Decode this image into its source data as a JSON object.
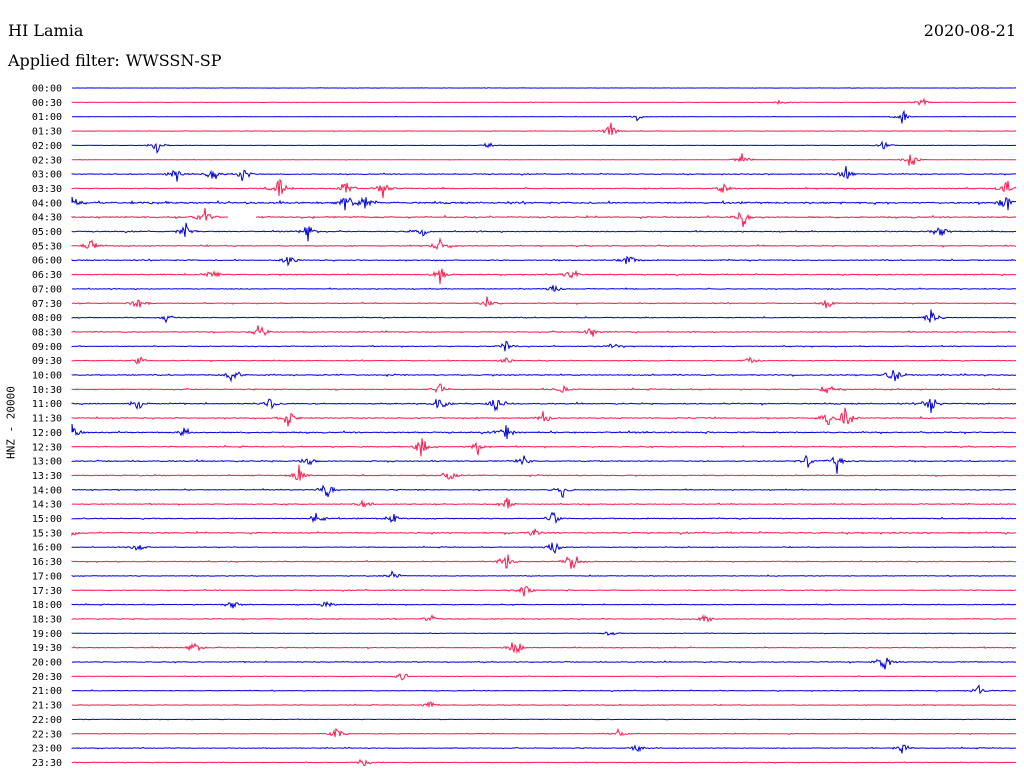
{
  "header": {
    "station": "HI Lamia",
    "date": "2020-08-21",
    "filter_label": "Applied filter:",
    "filter_value": "WWSSN-SP"
  },
  "channel_label": "HNZ - 20000",
  "colors": {
    "trace_a": "#0000dd",
    "trace_b": "#ff1a4d",
    "background": "#ffffff"
  },
  "chart_data": {
    "type": "line",
    "title": "HI Lamia",
    "ylabel": "HNZ - 20000",
    "grid": false,
    "legend": "none",
    "row_interval_minutes": 30,
    "categories": [
      "00:00",
      "00:30",
      "01:00",
      "01:30",
      "02:00",
      "02:30",
      "03:00",
      "03:30",
      "04:00",
      "04:30",
      "05:00",
      "05:30",
      "06:00",
      "06:30",
      "07:00",
      "07:30",
      "08:00",
      "08:30",
      "09:00",
      "09:30",
      "10:00",
      "10:30",
      "11:00",
      "11:30",
      "12:00",
      "12:30",
      "13:00",
      "13:30",
      "14:00",
      "14:30",
      "15:00",
      "15:30",
      "16:00",
      "16:30",
      "17:00",
      "17:30",
      "18:00",
      "18:30",
      "19:00",
      "19:30",
      "20:00",
      "20:30",
      "21:00",
      "21:30",
      "22:00",
      "22:30",
      "23:00",
      "23:30"
    ],
    "series": [
      {
        "values": [
          0.1,
          0.12,
          0.1,
          0.15,
          0.12,
          0.15,
          0.3,
          0.35,
          0.6,
          0.5,
          0.35,
          0.35,
          0.35,
          0.35,
          0.3,
          0.3,
          0.3,
          0.35,
          0.3,
          0.3,
          0.4,
          0.35,
          0.4,
          0.4,
          0.45,
          0.35,
          0.4,
          0.35,
          0.3,
          0.3,
          0.35,
          0.45,
          0.25,
          0.3,
          0.25,
          0.3,
          0.25,
          0.3,
          0.2,
          0.3,
          0.3,
          0.2,
          0.25,
          0.25,
          0.2,
          0.25,
          0.25,
          0.2
        ],
        "events": [
          [],
          [
            [
              0.75,
              0.4
            ],
            [
              0.9,
              0.5
            ]
          ],
          [
            [
              0.6,
              0.4
            ],
            [
              0.88,
              0.6
            ]
          ],
          [
            [
              0.57,
              1.0
            ]
          ],
          [
            [
              0.09,
              0.9
            ],
            [
              0.44,
              0.4
            ],
            [
              0.86,
              0.4
            ]
          ],
          [
            [
              0.89,
              1.0
            ],
            [
              0.71,
              0.6
            ]
          ],
          [
            [
              0.11,
              1.0
            ],
            [
              0.15,
              0.8
            ],
            [
              0.18,
              1.1
            ],
            [
              0.82,
              0.9
            ]
          ],
          [
            [
              0.22,
              1.4
            ],
            [
              0.29,
              0.9
            ],
            [
              0.33,
              0.8
            ],
            [
              0.69,
              0.5
            ],
            [
              0.99,
              1.3
            ]
          ],
          [
            [
              0.0,
              1.1
            ],
            [
              0.29,
              1.2
            ],
            [
              0.31,
              0.8
            ],
            [
              0.99,
              1.2
            ]
          ],
          [
            [
              0.14,
              1.1
            ],
            [
              0.71,
              1.1
            ]
          ],
          [
            [
              0.12,
              0.9
            ],
            [
              0.25,
              0.8
            ],
            [
              0.37,
              0.6
            ],
            [
              0.92,
              0.7
            ]
          ],
          [
            [
              0.02,
              0.8
            ],
            [
              0.39,
              0.8
            ]
          ],
          [
            [
              0.23,
              1.0
            ],
            [
              0.59,
              0.9
            ]
          ],
          [
            [
              0.15,
              0.7
            ],
            [
              0.39,
              0.9
            ],
            [
              0.53,
              0.7
            ]
          ],
          [
            [
              0.51,
              0.5
            ]
          ],
          [
            [
              0.07,
              0.8
            ],
            [
              0.44,
              0.8
            ],
            [
              0.8,
              0.6
            ]
          ],
          [
            [
              0.1,
              0.6
            ],
            [
              0.91,
              1.2
            ]
          ],
          [
            [
              0.2,
              1.0
            ],
            [
              0.55,
              0.6
            ]
          ],
          [
            [
              0.46,
              0.5
            ],
            [
              0.57,
              0.5
            ]
          ],
          [
            [
              0.07,
              0.5
            ],
            [
              0.46,
              0.6
            ],
            [
              0.72,
              0.5
            ]
          ],
          [
            [
              0.17,
              0.9
            ],
            [
              0.87,
              0.9
            ]
          ],
          [
            [
              0.39,
              1.1
            ],
            [
              0.52,
              0.5
            ],
            [
              0.8,
              0.6
            ]
          ],
          [
            [
              0.07,
              0.8
            ],
            [
              0.21,
              0.6
            ],
            [
              0.39,
              1.0
            ],
            [
              0.45,
              0.9
            ],
            [
              0.91,
              1.0
            ]
          ],
          [
            [
              0.23,
              1.0
            ],
            [
              0.5,
              0.7
            ],
            [
              0.8,
              0.8
            ],
            [
              0.82,
              1.3
            ]
          ],
          [
            [
              0.0,
              0.9
            ],
            [
              0.12,
              0.8
            ],
            [
              0.46,
              1.1
            ]
          ],
          [
            [
              0.37,
              1.2
            ],
            [
              0.43,
              0.9
            ]
          ],
          [
            [
              0.25,
              0.6
            ],
            [
              0.48,
              0.7
            ],
            [
              0.78,
              0.7
            ],
            [
              0.81,
              1.0
            ]
          ],
          [
            [
              0.24,
              1.0
            ],
            [
              0.4,
              1.0
            ]
          ],
          [
            [
              0.27,
              0.8
            ],
            [
              0.52,
              0.9
            ]
          ],
          [
            [
              0.31,
              0.7
            ],
            [
              0.46,
              0.8
            ]
          ],
          [
            [
              0.26,
              0.8
            ],
            [
              0.34,
              0.6
            ],
            [
              0.51,
              0.7
            ]
          ],
          [
            [
              0.0,
              0.4
            ],
            [
              0.49,
              0.5
            ]
          ],
          [
            [
              0.07,
              0.5
            ],
            [
              0.51,
              0.8
            ]
          ],
          [
            [
              0.46,
              1.0
            ],
            [
              0.53,
              1.3
            ]
          ],
          [
            [
              0.34,
              0.5
            ]
          ],
          [
            [
              0.48,
              0.8
            ]
          ],
          [
            [
              0.17,
              0.5
            ],
            [
              0.27,
              0.6
            ]
          ],
          [
            [
              0.38,
              0.5
            ],
            [
              0.67,
              0.8
            ]
          ],
          [
            [
              0.57,
              0.4
            ]
          ],
          [
            [
              0.13,
              0.6
            ],
            [
              0.47,
              1.4
            ]
          ],
          [
            [
              0.86,
              1.3
            ]
          ],
          [
            [
              0.35,
              0.5
            ]
          ],
          [
            [
              0.96,
              0.6
            ]
          ],
          [
            [
              0.38,
              0.5
            ]
          ],
          [],
          [
            [
              0.28,
              0.6
            ],
            [
              0.58,
              0.6
            ]
          ],
          [
            [
              0.6,
              0.6
            ],
            [
              0.88,
              0.6
            ]
          ],
          [
            [
              0.31,
              0.6
            ]
          ]
        ]
      }
    ]
  }
}
